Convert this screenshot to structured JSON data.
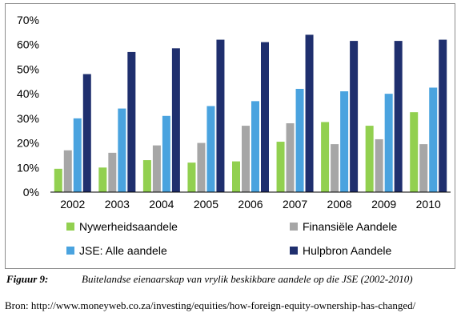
{
  "caption": {
    "label": "Figuur 9:",
    "text": "Buitelandse eienaarskap van vrylik beskikbare aandele op die JSE (2002-2010)"
  },
  "source": "Bron:  http://www.moneyweb.co.za/investing/equities/how-foreign-equity-ownership-has-changed/",
  "chart_data": {
    "type": "bar",
    "title": "",
    "xlabel": "",
    "ylabel": "",
    "ylim": [
      0,
      70
    ],
    "yticks": [
      "0%",
      "10%",
      "20%",
      "30%",
      "40%",
      "50%",
      "60%",
      "70%"
    ],
    "grid": false,
    "legend_position": "bottom",
    "categories": [
      "2002",
      "2003",
      "2004",
      "2005",
      "2006",
      "2007",
      "2008",
      "2009",
      "2010"
    ],
    "series": [
      {
        "name": "Nywerheidsaandele",
        "color": "#92d050",
        "values": [
          9.5,
          10,
          13,
          12,
          12.5,
          20.5,
          28.5,
          27,
          32.5
        ]
      },
      {
        "name": "Finansiële Aandele",
        "color": "#a6a6a6",
        "values": [
          17,
          16,
          19,
          20,
          27,
          28,
          19.5,
          21.5,
          19.5
        ]
      },
      {
        "name": "JSE: Alle aandele",
        "color": "#4aa3df",
        "values": [
          30,
          34,
          31,
          35,
          37,
          42,
          41,
          40,
          42.5
        ]
      },
      {
        "name": "Hulpbron Aandele",
        "color": "#1f2f6e",
        "values": [
          48,
          57,
          58.5,
          62,
          61,
          64,
          61.5,
          61.5,
          62
        ]
      }
    ]
  }
}
